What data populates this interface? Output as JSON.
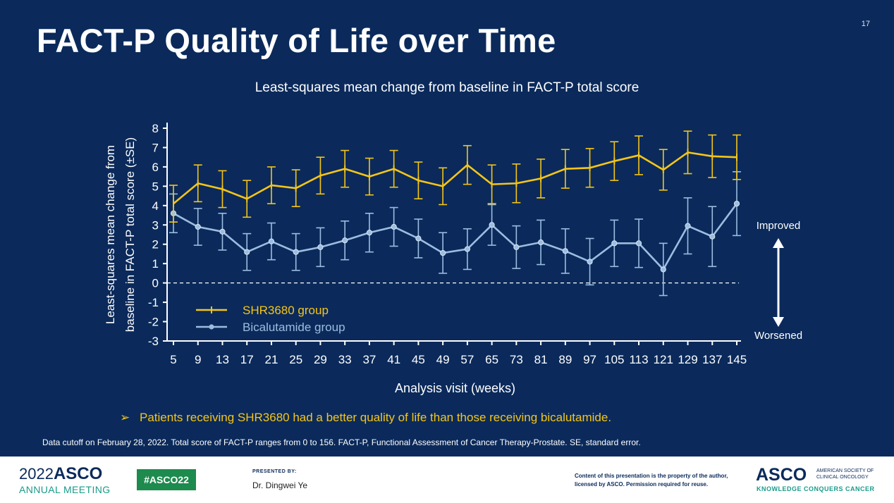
{
  "page_number": "17",
  "title": "FACT-P Quality of Life over Time",
  "subtitle": "Least-squares mean change from baseline in FACT-P total score",
  "bullet": "Patients receiving SHR3680 had a better quality of life than those receiving bicalutamide.",
  "footnote": "Data cutoff on February 28, 2022. Total score of FACT-P ranges from 0 to 156. FACT-P, Functional Assessment of Cancer Therapy-Prostate. SE, standard error.",
  "colors": {
    "background": "#0b2a5b",
    "shr3680": "#f5c518",
    "bicalutamide": "#9cbde0",
    "text": "#ffffff"
  },
  "chart_data": {
    "type": "line",
    "ylabel": "Least-squares mean change from baseline in FACT-P total score (±SE)",
    "ylabel_lines": [
      "Least-squares mean change from",
      "baseline in FACT-P total score (±SE)"
    ],
    "xlabel": "Analysis visit (weeks)",
    "categories": [
      "5",
      "9",
      "13",
      "17",
      "21",
      "25",
      "29",
      "33",
      "37",
      "41",
      "45",
      "49",
      "57",
      "65",
      "73",
      "81",
      "89",
      "97",
      "105",
      "113",
      "121",
      "129",
      "137",
      "145"
    ],
    "ylim": [
      -3,
      8
    ],
    "yticks": [
      -3,
      -2,
      -1,
      0,
      1,
      2,
      3,
      4,
      5,
      6,
      7,
      8
    ],
    "reference_line": 0,
    "legend_position": "bottom-left",
    "annotations": {
      "improved": "Improved",
      "worsened": "Worsened"
    },
    "series": [
      {
        "name": "SHR3680 group",
        "marker": "tick",
        "values": [
          4.1,
          5.15,
          4.85,
          4.35,
          5.05,
          4.9,
          5.55,
          5.9,
          5.5,
          5.9,
          5.3,
          5.0,
          6.1,
          5.1,
          5.15,
          5.4,
          5.9,
          5.95,
          6.3,
          6.6,
          5.85,
          6.75,
          6.55,
          6.5
        ],
        "se": [
          0.95,
          0.95,
          0.95,
          0.95,
          0.95,
          0.95,
          0.95,
          0.95,
          0.95,
          0.95,
          0.95,
          0.95,
          1.0,
          1.0,
          1.0,
          1.0,
          1.0,
          1.0,
          1.0,
          1.0,
          1.05,
          1.1,
          1.1,
          1.15
        ]
      },
      {
        "name": "Bicalutamide group",
        "marker": "circle",
        "values": [
          3.6,
          2.9,
          2.65,
          1.6,
          2.15,
          1.6,
          1.85,
          2.2,
          2.6,
          2.9,
          2.3,
          1.55,
          1.75,
          3.0,
          1.85,
          2.1,
          1.65,
          1.1,
          2.05,
          2.05,
          0.7,
          2.95,
          2.4,
          4.1
        ],
        "se": [
          1.0,
          0.95,
          0.95,
          0.95,
          0.95,
          0.95,
          1.0,
          1.0,
          1.0,
          1.0,
          1.0,
          1.05,
          1.05,
          1.05,
          1.1,
          1.15,
          1.15,
          1.2,
          1.2,
          1.25,
          1.35,
          1.45,
          1.55,
          1.65
        ]
      }
    ]
  },
  "footer": {
    "year": "2022",
    "asco": "ASCO",
    "annual_meeting": "ANNUAL MEETING",
    "hashtag": "#ASCO22",
    "presented_by_label": "PRESENTED BY:",
    "presenter": "Dr. Dingwei Ye",
    "copyright": "Content of this presentation is the property of the author, licensed by ASCO. Permission required for reuse.",
    "asco_logo": "ASCO",
    "asco_full": "AMERICAN SOCIETY OF CLINICAL ONCOLOGY",
    "tagline": "KNOWLEDGE CONQUERS CANCER"
  }
}
